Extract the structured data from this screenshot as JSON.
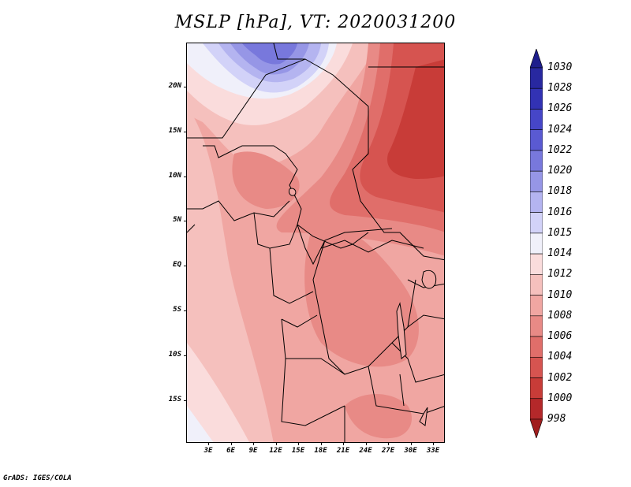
{
  "title": "MSLP [hPa], VT: 2020031200",
  "footer": "GrADS: IGES/COLA",
  "map": {
    "lat_labels": [
      "20N",
      "15N",
      "10N",
      "5N",
      "EQ",
      "5S",
      "10S",
      "15S"
    ],
    "lon_labels": [
      "3E",
      "6E",
      "9E",
      "12E",
      "15E",
      "18E",
      "21E",
      "24E",
      "27E",
      "30E",
      "33E"
    ]
  },
  "legend": {
    "levels": [
      "1030",
      "1028",
      "1026",
      "1024",
      "1022",
      "1020",
      "1018",
      "1016",
      "1015",
      "1014",
      "1012",
      "1010",
      "1008",
      "1006",
      "1004",
      "1002",
      "1000",
      "998"
    ],
    "colors": [
      "#1e1e8c",
      "#2828a0",
      "#3232b4",
      "#4646c8",
      "#5a5ad2",
      "#7878dc",
      "#9696e6",
      "#b4b4f0",
      "#d2d2f8",
      "#f0f0fa",
      "#fadcdc",
      "#f5c0bd",
      "#f0a6a2",
      "#e88a86",
      "#e06e6a",
      "#d65450",
      "#c83c38",
      "#b4282a",
      "#a01e1e"
    ]
  },
  "colors": {
    "high_center": "#7878dc",
    "low_center": "#c83c38",
    "background_field": "#f0a6a2"
  }
}
